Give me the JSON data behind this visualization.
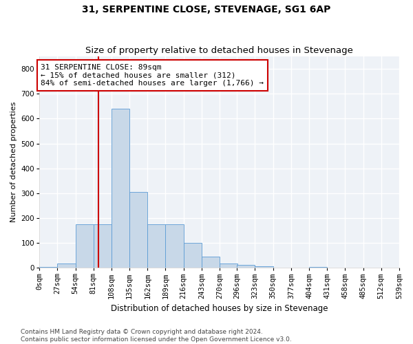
{
  "title": "31, SERPENTINE CLOSE, STEVENAGE, SG1 6AP",
  "subtitle": "Size of property relative to detached houses in Stevenage",
  "xlabel": "Distribution of detached houses by size in Stevenage",
  "ylabel": "Number of detached properties",
  "bar_color": "#c8d8e8",
  "bar_edge_color": "#5b9bd5",
  "annotation_line1": "31 SERPENTINE CLOSE: 89sqm",
  "annotation_line2": "← 15% of detached houses are smaller (312)",
  "annotation_line3": "84% of semi-detached houses are larger (1,766) →",
  "annotation_box_color": "#ffffff",
  "annotation_box_edge_color": "#cc0000",
  "vline_x": 89,
  "vline_color": "#cc0000",
  "bin_edges": [
    0,
    27,
    54,
    81,
    108,
    135,
    162,
    189,
    216,
    243,
    270,
    296,
    323,
    350,
    377,
    404,
    431,
    458,
    485,
    512,
    539
  ],
  "bar_heights": [
    3,
    18,
    175,
    175,
    640,
    305,
    175,
    175,
    100,
    45,
    18,
    12,
    5,
    0,
    0,
    3,
    0,
    0,
    0,
    0
  ],
  "ylim": [
    0,
    850
  ],
  "yticks": [
    0,
    100,
    200,
    300,
    400,
    500,
    600,
    700,
    800
  ],
  "bg_color": "#eef2f7",
  "grid_color": "#ffffff",
  "footer_text": "Contains HM Land Registry data © Crown copyright and database right 2024.\nContains public sector information licensed under the Open Government Licence v3.0.",
  "title_fontsize": 10,
  "subtitle_fontsize": 9.5,
  "xlabel_fontsize": 8.5,
  "ylabel_fontsize": 8,
  "tick_fontsize": 7.5,
  "annotation_fontsize": 8,
  "footer_fontsize": 6.5
}
